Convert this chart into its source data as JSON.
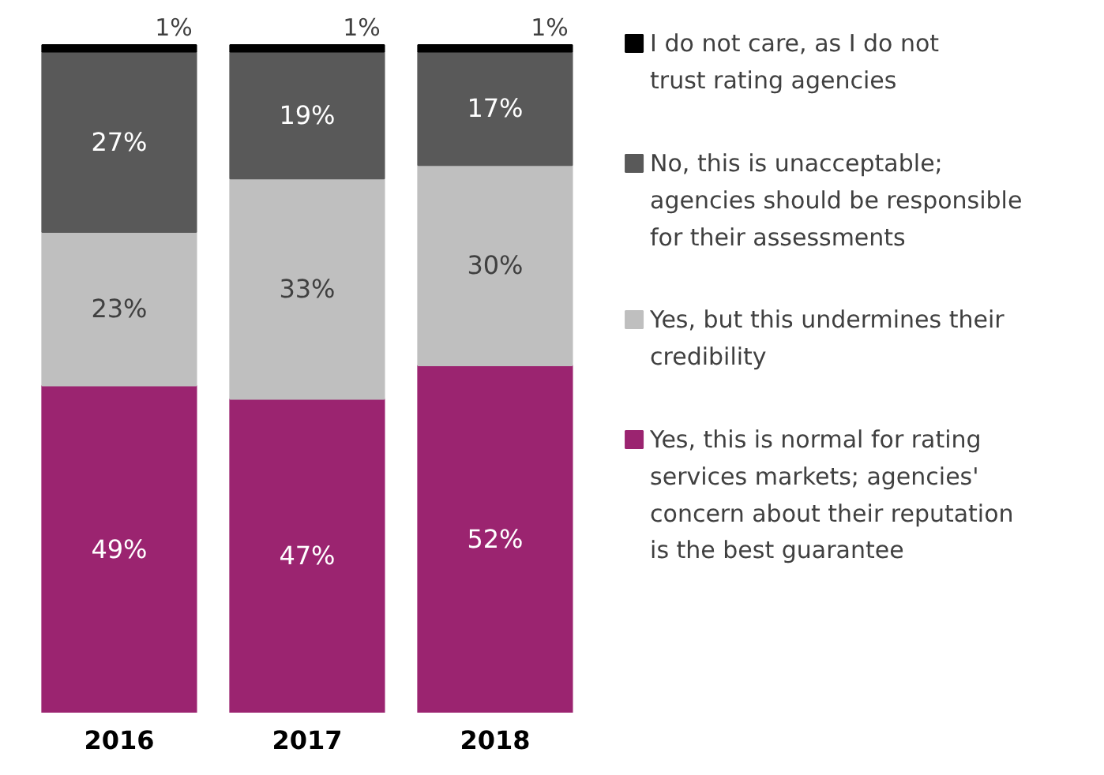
{
  "chart_data": {
    "type": "bar",
    "stacked": true,
    "legend": "right",
    "categories": [
      "2016",
      "2017",
      "2018"
    ],
    "series": [
      {
        "name": "Yes, this is normal for rating services markets; agencies' concern about their reputation is the best guarantee",
        "color": "#9b2470",
        "values": [
          49,
          47,
          52
        ],
        "value_labels": [
          "49%",
          "47%",
          "52%"
        ]
      },
      {
        "name": "Yes, but this undermines their credibility",
        "color": "#bfbfbf",
        "values": [
          23,
          33,
          30
        ],
        "value_labels": [
          "23%",
          "33%",
          "30%"
        ]
      },
      {
        "name": "No, this is unacceptable; agencies should be responsible for their assessments",
        "color": "#595959",
        "values": [
          27,
          19,
          17
        ],
        "value_labels": [
          "27%",
          "19%",
          "17%"
        ]
      },
      {
        "name": "I do not care, as I do not trust rating agencies",
        "color": "#000000",
        "values": [
          1,
          1,
          1
        ],
        "value_labels": [
          "1%",
          "1%",
          "1%"
        ]
      }
    ]
  }
}
